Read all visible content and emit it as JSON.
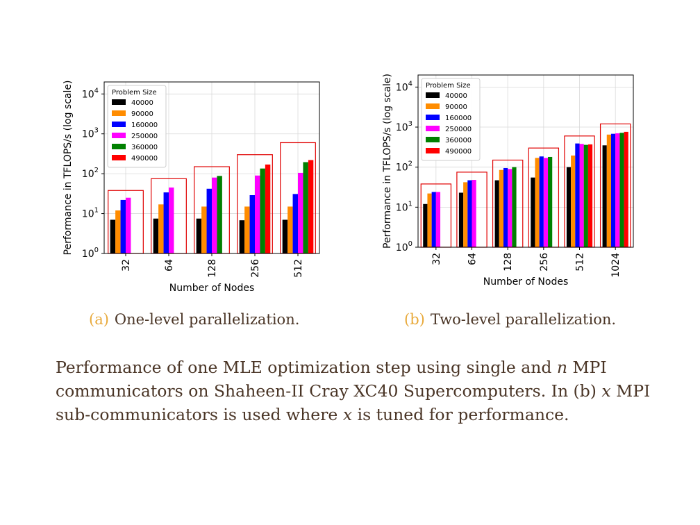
{
  "chart_data": [
    {
      "type": "bar",
      "subcaption_label": "(a)",
      "subcaption": "One-level parallelization.",
      "xlabel": "Number of Nodes",
      "ylabel": "Performance in TFLOPS/s (log scale)",
      "yscale": "log",
      "ylim": [
        1,
        20000
      ],
      "yticks": [
        1,
        10,
        100,
        1000,
        10000
      ],
      "ytick_labels": [
        [
          "10",
          "0"
        ],
        [
          "10",
          "1"
        ],
        [
          "10",
          "2"
        ],
        [
          "10",
          "3"
        ],
        [
          "10",
          "4"
        ]
      ],
      "categories": [
        "32",
        "64",
        "128",
        "256",
        "512"
      ],
      "legend_title": "Problem Size",
      "legend_position": "upper-left",
      "grid": true,
      "series": [
        {
          "name": "40000",
          "color": "#000000",
          "values": [
            7,
            7.5,
            7.5,
            6.8,
            7
          ]
        },
        {
          "name": "90000",
          "color": "#ff8c00",
          "values": [
            12,
            17,
            15,
            15,
            15
          ]
        },
        {
          "name": "160000",
          "color": "#0000ff",
          "values": [
            22,
            34,
            42,
            29,
            31
          ]
        },
        {
          "name": "250000",
          "color": "#ff00ff",
          "values": [
            25,
            45,
            80,
            90,
            105
          ]
        },
        {
          "name": "360000",
          "color": "#008000",
          "values": [
            null,
            null,
            88,
            135,
            195
          ]
        },
        {
          "name": "490000",
          "color": "#ff0000",
          "values": [
            null,
            null,
            null,
            170,
            220
          ]
        }
      ],
      "highlight_boxes": [
        38,
        75,
        150,
        300,
        600
      ],
      "highlight_color": "#e00000"
    },
    {
      "type": "bar",
      "subcaption_label": "(b)",
      "subcaption": "Two-level parallelization.",
      "xlabel": "Number of Nodes",
      "ylabel": "Performance in TFLOPS/s (log scale)",
      "yscale": "log",
      "ylim": [
        1,
        20000
      ],
      "yticks": [
        1,
        10,
        100,
        1000,
        10000
      ],
      "ytick_labels": [
        [
          "10",
          "0"
        ],
        [
          "10",
          "1"
        ],
        [
          "10",
          "2"
        ],
        [
          "10",
          "3"
        ],
        [
          "10",
          "4"
        ]
      ],
      "categories": [
        "32",
        "64",
        "128",
        "256",
        "512",
        "1024"
      ],
      "legend_title": "Problem Size",
      "legend_position": "upper-left",
      "grid": true,
      "series": [
        {
          "name": "40000",
          "color": "#000000",
          "values": [
            12,
            23,
            47,
            55,
            100,
            350
          ]
        },
        {
          "name": "90000",
          "color": "#ff8c00",
          "values": [
            22,
            42,
            85,
            170,
            195,
            650
          ]
        },
        {
          "name": "160000",
          "color": "#0000ff",
          "values": [
            24,
            47,
            95,
            185,
            390,
            680
          ]
        },
        {
          "name": "250000",
          "color": "#ff00ff",
          "values": [
            24,
            48,
            90,
            170,
            380,
            700
          ]
        },
        {
          "name": "360000",
          "color": "#008000",
          "values": [
            null,
            null,
            100,
            180,
            360,
            720
          ]
        },
        {
          "name": "490000",
          "color": "#ff0000",
          "values": [
            null,
            null,
            null,
            null,
            370,
            760
          ]
        }
      ],
      "highlight_boxes": [
        38,
        75,
        150,
        300,
        600,
        1200
      ],
      "highlight_color": "#e00000"
    }
  ],
  "caption": {
    "part1": "Performance of one MLE optimization step using single and ",
    "n": "n",
    "part2": " MPI communicators on Shaheen-II Cray XC40 Supercomputers. In (b) ",
    "x1": "x",
    "part3": " MPI sub-communicators is used where ",
    "x2": "x",
    "part4": " is tuned for performance."
  }
}
